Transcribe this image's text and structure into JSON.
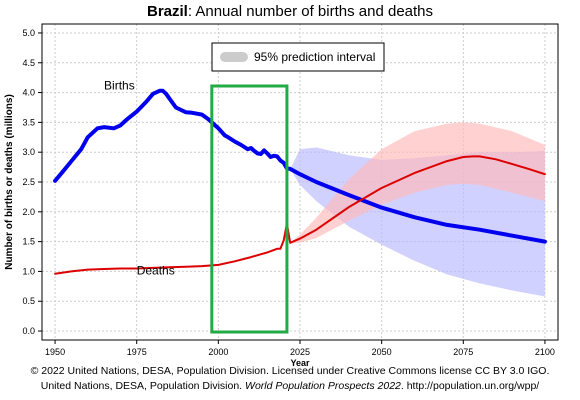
{
  "title": {
    "country": "Brazil",
    "suffix": ": Annual number of births and deaths"
  },
  "credits": {
    "line1": "© 2022 United Nations, DESA, Population Division. Licensed under Creative Commons license CC BY 3.0 IGO.",
    "line2_prefix": "United Nations, DESA, Population Division. ",
    "line2_italic": "World Population Prospects 2022",
    "line2_suffix": ". http://population.un.org/wpp/"
  },
  "chart_data": {
    "type": "line",
    "xlabel": "Year",
    "ylabel": "Number of births or deaths (millions)",
    "xlim": [
      1946,
      2104
    ],
    "ylim": [
      -0.15,
      5.15
    ],
    "xticks": [
      1950,
      1975,
      2000,
      2025,
      2050,
      2075,
      2100
    ],
    "yticks": [
      0.0,
      0.5,
      1.0,
      1.5,
      2.0,
      2.5,
      3.0,
      3.5,
      4.0,
      4.5,
      5.0
    ],
    "grid": true,
    "legend": {
      "label": "95% prediction interval",
      "position": "top-center"
    },
    "highlight": {
      "x": [
        1998,
        2021
      ],
      "color": "#22aa44"
    },
    "colors": {
      "births": "#0000ee",
      "deaths": "#dd0000",
      "births_band": "#b8b8ff",
      "deaths_band": "#ffb8b8",
      "legend_swatch": "#cccccc"
    },
    "series": [
      {
        "name": "Births",
        "label_at": [
          1965,
          4.05
        ],
        "x": [
          1950,
          1952,
          1955,
          1958,
          1960,
          1963,
          1965,
          1968,
          1970,
          1972,
          1975,
          1978,
          1980,
          1982,
          1983,
          1984,
          1985,
          1987,
          1990,
          1992,
          1995,
          1997,
          1999,
          2000,
          2002,
          2003,
          2005,
          2007,
          2009,
          2010,
          2011,
          2012,
          2013,
          2014,
          2015,
          2016,
          2017,
          2018,
          2019,
          2020,
          2021,
          2022,
          2025,
          2030,
          2040,
          2050,
          2060,
          2070,
          2080,
          2090,
          2100
        ],
        "values": [
          2.52,
          2.65,
          2.85,
          3.05,
          3.25,
          3.4,
          3.42,
          3.4,
          3.45,
          3.55,
          3.68,
          3.85,
          3.98,
          4.03,
          4.03,
          3.98,
          3.9,
          3.75,
          3.67,
          3.66,
          3.63,
          3.55,
          3.45,
          3.4,
          3.28,
          3.25,
          3.18,
          3.12,
          3.05,
          3.07,
          3.02,
          2.98,
          2.97,
          3.03,
          2.98,
          2.92,
          2.94,
          2.93,
          2.86,
          2.82,
          2.73,
          2.72,
          2.63,
          2.5,
          2.28,
          2.07,
          1.91,
          1.78,
          1.7,
          1.6,
          1.5
        ]
      },
      {
        "name": "Deaths",
        "label_at": [
          1975,
          0.95
        ],
        "x": [
          1950,
          1955,
          1960,
          1965,
          1970,
          1975,
          1980,
          1985,
          1990,
          1995,
          2000,
          2005,
          2010,
          2015,
          2018,
          2019,
          2020,
          2021,
          2022,
          2025,
          2030,
          2040,
          2050,
          2060,
          2070,
          2075,
          2078,
          2080,
          2085,
          2090,
          2095,
          2100
        ],
        "values": [
          0.96,
          1.0,
          1.03,
          1.04,
          1.05,
          1.05,
          1.06,
          1.07,
          1.08,
          1.09,
          1.11,
          1.17,
          1.24,
          1.32,
          1.38,
          1.38,
          1.52,
          1.8,
          1.48,
          1.55,
          1.7,
          2.08,
          2.4,
          2.65,
          2.85,
          2.92,
          2.93,
          2.93,
          2.88,
          2.8,
          2.72,
          2.63
        ]
      }
    ],
    "intervals": [
      {
        "series": "Births",
        "x": [
          2022,
          2025,
          2030,
          2040,
          2050,
          2060,
          2070,
          2080,
          2090,
          2100
        ],
        "lower": [
          2.72,
          2.45,
          2.18,
          1.75,
          1.45,
          1.18,
          0.95,
          0.8,
          0.68,
          0.58
        ],
        "upper": [
          2.72,
          3.05,
          3.08,
          2.95,
          2.87,
          2.9,
          2.95,
          3.0,
          3.0,
          3.02
        ]
      },
      {
        "series": "Deaths",
        "x": [
          2022,
          2025,
          2030,
          2040,
          2050,
          2060,
          2070,
          2075,
          2080,
          2090,
          2100
        ],
        "lower": [
          1.48,
          1.48,
          1.56,
          1.85,
          2.12,
          2.32,
          2.45,
          2.47,
          2.45,
          2.32,
          2.18
        ],
        "upper": [
          1.48,
          1.62,
          1.9,
          2.55,
          3.05,
          3.35,
          3.48,
          3.5,
          3.48,
          3.35,
          3.12
        ]
      }
    ]
  }
}
